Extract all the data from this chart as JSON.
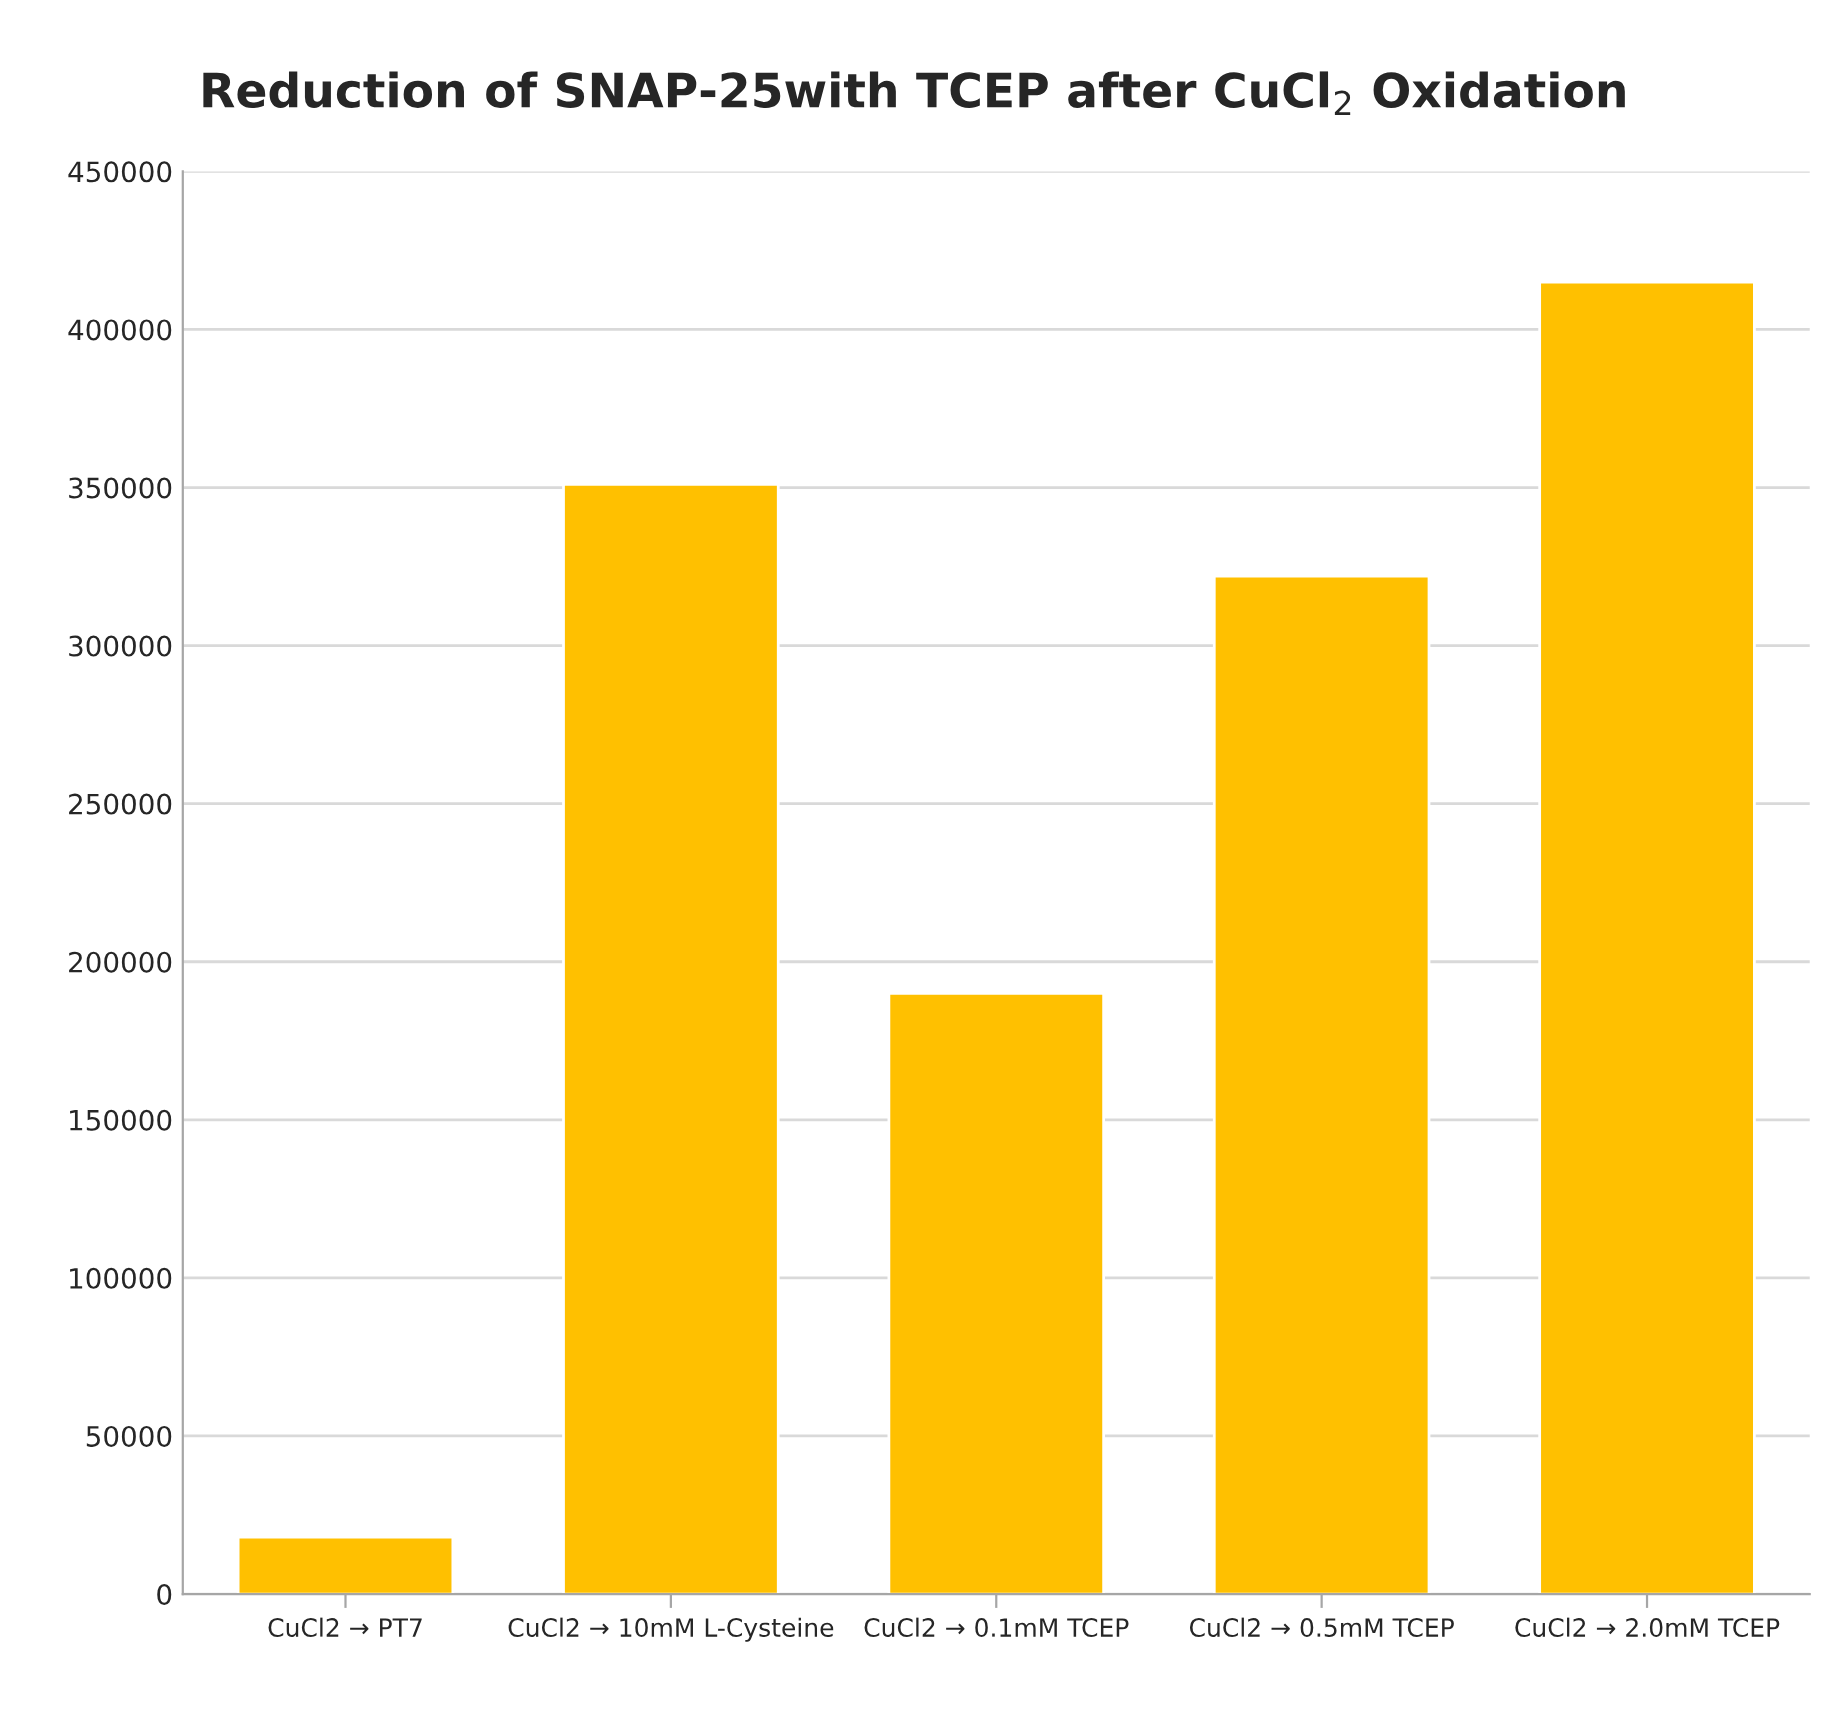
{
  "chart_data": {
    "type": "bar",
    "title": "Reduction of SNAP-25with TCEP after CuCl$_{2}$ Oxidation",
    "categories": [
      "CuCl2 → PT7",
      "CuCl2 → 10mM L-Cysteine",
      "CuCl2 → 0.1mM TCEP",
      "CuCl2 → 0.5mM TCEP",
      "CuCl2 → 2.0mM TCEP"
    ],
    "values": [
      18000,
      351000,
      190000,
      322000,
      415000
    ],
    "color": "#ffc000",
    "ylim": [
      0,
      450000
    ],
    "yticks": [
      0,
      50000,
      100000,
      150000,
      200000,
      250000,
      300000,
      350000,
      400000,
      450000
    ],
    "grid": "y"
  }
}
